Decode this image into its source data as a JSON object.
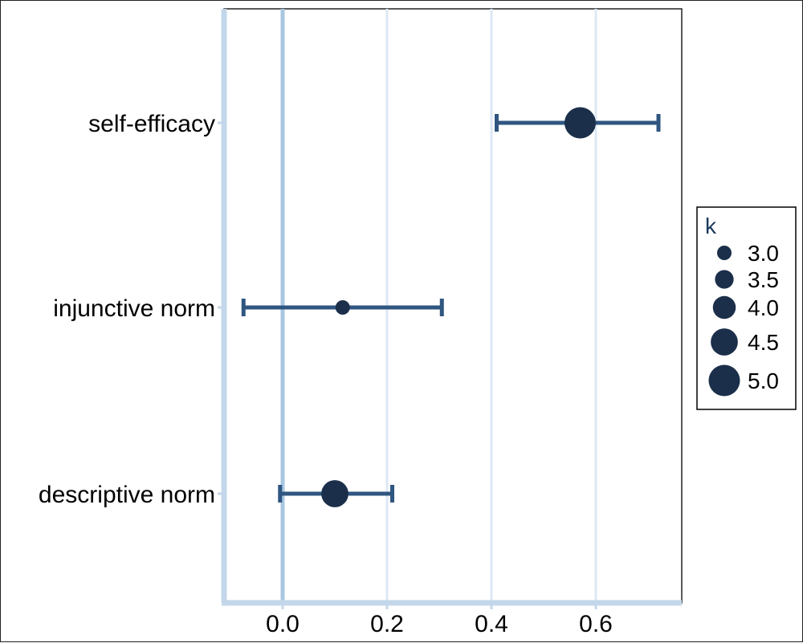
{
  "chart_data": {
    "type": "forest",
    "title": "",
    "xlabel": "",
    "ylabel": "",
    "xlim": [
      -0.11,
      0.76
    ],
    "x_ticks": [
      0.0,
      0.2,
      0.4,
      0.6
    ],
    "x_tick_labels": [
      "0.0",
      "0.2",
      "0.4",
      "0.6"
    ],
    "grid": true,
    "reference_line_x": 0.0,
    "categories": [
      "self-efficacy",
      "injunctive norm",
      "descriptive norm"
    ],
    "estimates": [
      {
        "label": "self-efficacy",
        "estimate": 0.57,
        "ci_low": 0.41,
        "ci_high": 0.72,
        "k": 5.0
      },
      {
        "label": "injunctive norm",
        "estimate": 0.115,
        "ci_low": -0.075,
        "ci_high": 0.305,
        "k": 3.0
      },
      {
        "label": "descriptive norm",
        "estimate": 0.1,
        "ci_low": -0.005,
        "ci_high": 0.21,
        "k": 4.5
      }
    ],
    "legend": {
      "title": "k",
      "placement": "right",
      "sizes": [
        3.0,
        3.5,
        4.0,
        4.5,
        5.0
      ],
      "labels": [
        "3.0",
        "3.5",
        "4.0",
        "4.5",
        "5.0"
      ]
    },
    "colors": {
      "point": "#1b2f4a",
      "errorbar": "#2f5680",
      "grid": "#dce8f4",
      "axis": "#c4d7ea",
      "zero_line": "#a8c6e0"
    }
  }
}
